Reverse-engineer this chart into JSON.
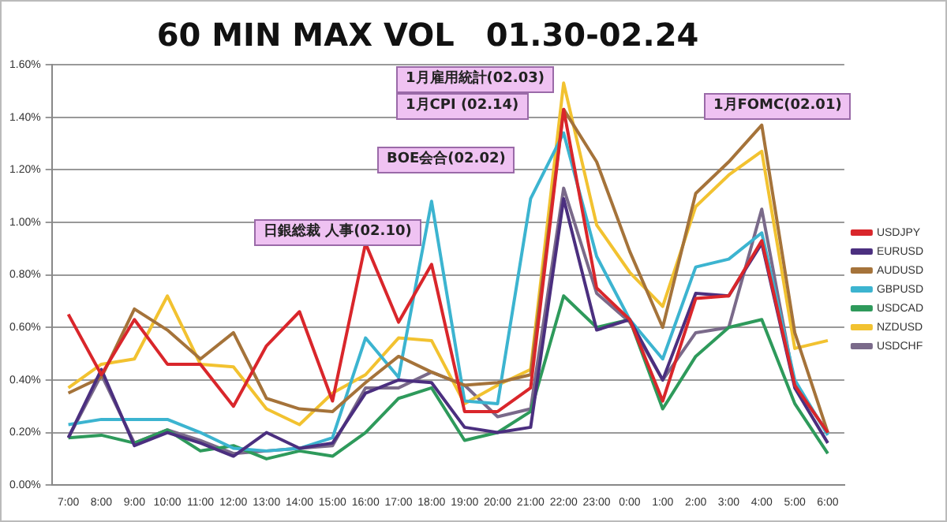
{
  "chart_data": {
    "type": "line",
    "title": "60 MIN MAX VOL　01.30-02.24",
    "categories": [
      "7:00",
      "8:00",
      "9:00",
      "10:00",
      "11:00",
      "12:00",
      "13:00",
      "14:00",
      "15:00",
      "16:00",
      "17:00",
      "18:00",
      "19:00",
      "20:00",
      "21:00",
      "22:00",
      "23:00",
      "0:00",
      "1:00",
      "2:00",
      "3:00",
      "4:00",
      "5:00",
      "6:00"
    ],
    "series": [
      {
        "name": "USDJPY",
        "color": "#d9262b",
        "values": [
          0.65,
          0.42,
          0.63,
          0.46,
          0.46,
          0.3,
          0.53,
          0.66,
          0.32,
          0.92,
          0.62,
          0.84,
          0.28,
          0.28,
          0.37,
          1.43,
          0.75,
          0.63,
          0.32,
          0.71,
          0.72,
          0.93,
          0.38,
          0.2
        ]
      },
      {
        "name": "EURUSD",
        "color": "#4b2f7f",
        "values": [
          0.18,
          0.44,
          0.15,
          0.2,
          0.16,
          0.11,
          0.2,
          0.14,
          0.16,
          0.35,
          0.4,
          0.39,
          0.22,
          0.2,
          0.22,
          1.09,
          0.59,
          0.63,
          0.4,
          0.73,
          0.72,
          0.92,
          0.37,
          0.16
        ]
      },
      {
        "name": "AUDUSD",
        "color": "#a5733a",
        "values": [
          0.35,
          0.41,
          0.67,
          0.59,
          0.48,
          0.58,
          0.33,
          0.29,
          0.28,
          0.39,
          0.49,
          0.43,
          0.38,
          0.39,
          0.42,
          1.43,
          1.23,
          0.89,
          0.6,
          1.11,
          1.23,
          1.37,
          0.58,
          0.2
        ]
      },
      {
        "name": "GBPUSD",
        "color": "#3cb4d0",
        "values": [
          0.23,
          0.25,
          0.25,
          0.25,
          0.2,
          0.14,
          0.13,
          0.14,
          0.18,
          0.56,
          0.41,
          1.08,
          0.32,
          0.31,
          1.09,
          1.34,
          0.87,
          0.63,
          0.48,
          0.83,
          0.86,
          0.96,
          0.4,
          0.19
        ]
      },
      {
        "name": "USDCAD",
        "color": "#2e9a5b",
        "values": [
          0.18,
          0.19,
          0.16,
          0.21,
          0.13,
          0.15,
          0.1,
          0.13,
          0.11,
          0.2,
          0.33,
          0.37,
          0.17,
          0.2,
          0.28,
          0.72,
          0.6,
          0.63,
          0.29,
          0.49,
          0.6,
          0.63,
          0.31,
          0.12
        ]
      },
      {
        "name": "NZDUSD",
        "color": "#f2c230",
        "values": [
          0.37,
          0.46,
          0.48,
          0.72,
          0.46,
          0.45,
          0.29,
          0.23,
          0.35,
          0.42,
          0.56,
          0.55,
          0.31,
          0.38,
          0.44,
          1.53,
          0.99,
          0.81,
          0.68,
          1.06,
          1.18,
          1.27,
          0.52,
          0.55
        ]
      },
      {
        "name": "USDCHF",
        "color": "#7a6a8a",
        "values": [
          0.18,
          0.42,
          0.16,
          0.21,
          0.17,
          0.12,
          0.13,
          0.14,
          0.15,
          0.37,
          0.37,
          0.43,
          0.38,
          0.26,
          0.29,
          1.13,
          0.73,
          0.62,
          0.4,
          0.58,
          0.6,
          1.05,
          0.38,
          0.2
        ]
      }
    ],
    "ylim": [
      0,
      1.6
    ],
    "yticks": [
      {
        "value": 0,
        "label": "0.00%"
      },
      {
        "value": 0.2,
        "label": "0.20%"
      },
      {
        "value": 0.4,
        "label": "0.40%"
      },
      {
        "value": 0.6,
        "label": "0.60%"
      },
      {
        "value": 0.8,
        "label": "0.80%"
      },
      {
        "value": 1.0,
        "label": "1.00%"
      },
      {
        "value": 1.2,
        "label": "1.20%"
      },
      {
        "value": 1.4,
        "label": "1.40%"
      },
      {
        "value": 1.6,
        "label": "1.60%"
      }
    ],
    "grid": "y",
    "legend": "right",
    "marker": "none",
    "line_style": "solid",
    "annotations": [
      "1月雇用統計(02.03)",
      "1月CPI (02.14)",
      "BOE会合(02.02)",
      "日銀総裁 人事(02.10)",
      "1月FOMC(02.01)"
    ]
  }
}
